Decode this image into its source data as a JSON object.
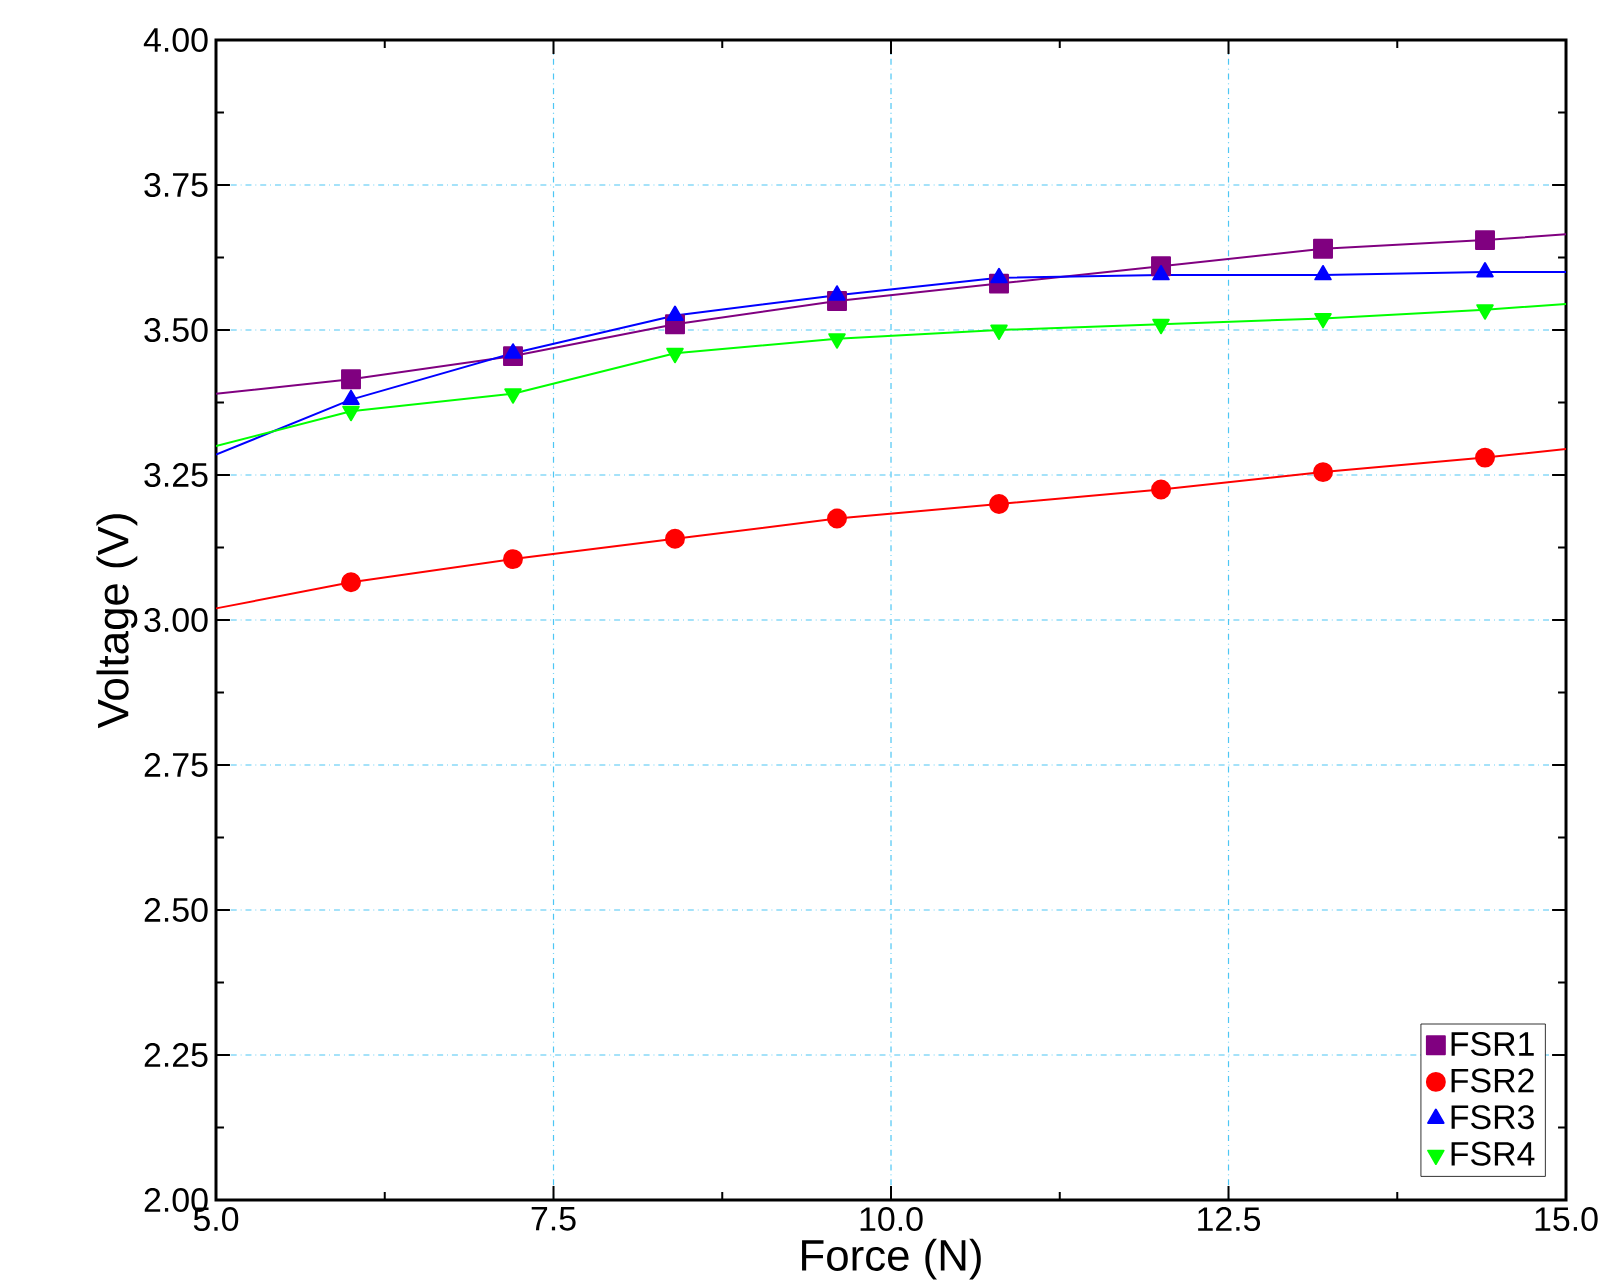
{
  "chart_data": {
    "type": "line",
    "xlabel": "Force (N)",
    "ylabel": "Voltage (V)",
    "xlim": [
      5,
      15
    ],
    "ylim": [
      2,
      4
    ],
    "xticks": [
      {
        "value": 5,
        "label": "5.0"
      },
      {
        "value": 7.5,
        "label": "7.5"
      },
      {
        "value": 10,
        "label": "10.0"
      },
      {
        "value": 12.5,
        "label": "12.5"
      },
      {
        "value": 15,
        "label": "15.0"
      }
    ],
    "yticks": [
      {
        "value": 2,
        "label": "2.00"
      },
      {
        "value": 2.25,
        "label": "2.25"
      },
      {
        "value": 2.5,
        "label": "2.50"
      },
      {
        "value": 2.75,
        "label": "2.75"
      },
      {
        "value": 3,
        "label": "3.00"
      },
      {
        "value": 3.25,
        "label": "3.25"
      },
      {
        "value": 3.5,
        "label": "3.50"
      },
      {
        "value": 3.75,
        "label": "3.75"
      },
      {
        "value": 4,
        "label": "4.00"
      }
    ],
    "grid": true,
    "legend": "bottom right",
    "series": [
      {
        "marker": "none",
        "color": "#800080",
        "x": [
          5,
          6,
          7.2,
          8.4,
          9.6,
          10.8,
          12,
          13.2,
          14.4,
          15
        ],
        "values": [
          3.39,
          3.415,
          3.455,
          3.51,
          3.55,
          3.58,
          3.61,
          3.64,
          3.655,
          3.665
        ]
      },
      {
        "marker": "none",
        "color": "#ff0000",
        "x": [
          5,
          6,
          7.2,
          8.4,
          9.6,
          10.8,
          12,
          13.2,
          14.4,
          15
        ],
        "values": [
          3.02,
          3.065,
          3.105,
          3.14,
          3.175,
          3.2,
          3.225,
          3.255,
          3.28,
          3.295
        ]
      },
      {
        "marker": "none",
        "color": "#0000ff",
        "x": [
          5,
          6,
          7.2,
          8.4,
          9.6,
          10.8,
          12,
          13.2,
          14.4,
          15
        ],
        "values": [
          3.285,
          3.38,
          3.46,
          3.525,
          3.56,
          3.59,
          3.595,
          3.595,
          3.6,
          3.6
        ]
      },
      {
        "marker": "none",
        "color": "#00ff00",
        "x": [
          5,
          6,
          7.2,
          8.4,
          9.6,
          10.8,
          12,
          13.2,
          14.4,
          15
        ],
        "values": [
          3.3,
          3.36,
          3.39,
          3.46,
          3.485,
          3.5,
          3.51,
          3.52,
          3.535,
          3.545
        ]
      },
      {
        "name": "FSR1",
        "type": "scatter",
        "marker": "square",
        "color": "#800080",
        "x": [
          6,
          7.2,
          8.4,
          9.6,
          10.8,
          12,
          13.2,
          14.4
        ],
        "values": [
          3.415,
          3.455,
          3.51,
          3.55,
          3.58,
          3.61,
          3.64,
          3.655
        ]
      },
      {
        "name": "FSR2",
        "type": "scatter",
        "marker": "circle",
        "color": "#ff0000",
        "x": [
          6,
          7.2,
          8.4,
          9.6,
          10.8,
          12,
          13.2,
          14.4
        ],
        "values": [
          3.065,
          3.105,
          3.14,
          3.175,
          3.2,
          3.225,
          3.255,
          3.28
        ]
      },
      {
        "name": "FSR3",
        "type": "scatter",
        "marker": "triangle",
        "color": "#0000ff",
        "x": [
          6,
          7.2,
          8.4,
          9.6,
          10.8,
          12,
          13.2,
          14.4
        ],
        "values": [
          3.38,
          3.46,
          3.525,
          3.56,
          3.59,
          3.595,
          3.595,
          3.6
        ]
      },
      {
        "name": "FSR4",
        "type": "scatter",
        "marker": "triangle-down",
        "color": "#00ff00",
        "x": [
          6,
          7.2,
          8.4,
          9.6,
          10.8,
          12,
          13.2,
          14.4
        ],
        "values": [
          3.36,
          3.39,
          3.46,
          3.485,
          3.5,
          3.51,
          3.52,
          3.535
        ]
      }
    ]
  }
}
